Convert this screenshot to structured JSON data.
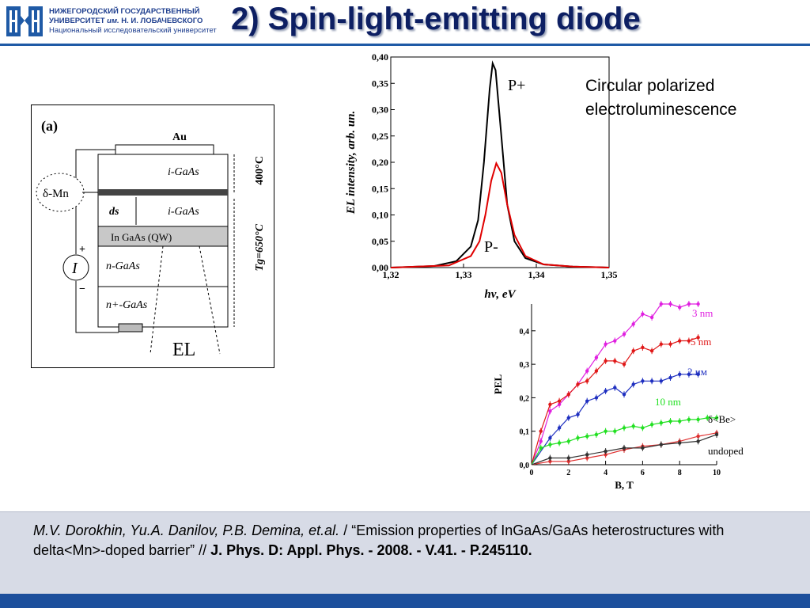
{
  "header": {
    "university_line1": "НИЖЕГОРОДСКИЙ ГОСУДАРСТВЕННЫЙ",
    "university_line2_a": "УНИВЕРСИТЕТ",
    "university_line2_b": "им.",
    "university_line2_c": "Н. И. ЛОБАЧЕВСКОГО",
    "university_line3": "Национальный исследовательский университет",
    "title": "2) Spin-light-emitting diode",
    "accent": "#1f5aa6",
    "title_color": "#0d1f63"
  },
  "figure_a": {
    "panel_label": "(a)",
    "layer_au": "Au",
    "layer_top": "i-GaAs",
    "layer_mid": "i-GaAs",
    "layer_qw": "In GaAs (QW)",
    "layer_n": "n-GaAs",
    "layer_nplus": "n+-GaAs",
    "dopant": "δ-Mn",
    "spacer": "ds",
    "temp_top": "400°C",
    "temp_bottom": "Tg=650°C",
    "current": "I",
    "plus": "+",
    "minus": "−",
    "emission": "EL"
  },
  "caption": {
    "line1": "Circular polarized",
    "line2": "electroluminescence"
  },
  "chart_data": [
    {
      "type": "line",
      "xlabel": "hν, eV",
      "ylabel": "EL intensity, arb. un.",
      "xlim": [
        1.32,
        1.35
      ],
      "ylim": [
        0,
        0.4
      ],
      "xticks": [
        "1,32",
        "1,33",
        "1,34",
        "1,35"
      ],
      "xtick_values": [
        1.32,
        1.33,
        1.34,
        1.35
      ],
      "yticks": [
        "0,00",
        "0,05",
        "0,10",
        "0,15",
        "0,20",
        "0,25",
        "0,30",
        "0,35",
        "0,40"
      ],
      "ytick_values": [
        0,
        0.05,
        0.1,
        0.15,
        0.2,
        0.25,
        0.3,
        0.35,
        0.4
      ],
      "series": [
        {
          "name": "P+",
          "color": "#000000",
          "x": [
            1.32,
            1.326,
            1.329,
            1.331,
            1.332,
            1.3328,
            1.3336,
            1.334,
            1.3344,
            1.3352,
            1.336,
            1.337,
            1.3385,
            1.341,
            1.345,
            1.35
          ],
          "y": [
            0.0,
            0.003,
            0.012,
            0.04,
            0.09,
            0.2,
            0.34,
            0.388,
            0.375,
            0.25,
            0.12,
            0.05,
            0.018,
            0.006,
            0.002,
            0.0
          ]
        },
        {
          "name": "P-",
          "color": "#e00000",
          "x": [
            1.32,
            1.328,
            1.331,
            1.3322,
            1.333,
            1.3338,
            1.3345,
            1.3352,
            1.336,
            1.337,
            1.3385,
            1.341,
            1.345,
            1.35
          ],
          "y": [
            0.0,
            0.004,
            0.022,
            0.05,
            0.1,
            0.165,
            0.198,
            0.18,
            0.12,
            0.062,
            0.022,
            0.006,
            0.002,
            0.0
          ]
        }
      ],
      "annotations": [
        "P+",
        "P-"
      ]
    },
    {
      "type": "line",
      "xlabel": "B, T",
      "ylabel": "PEL",
      "xlim": [
        0,
        10
      ],
      "ylim": [
        0,
        0.48
      ],
      "xticks": [
        "0",
        "2",
        "4",
        "6",
        "8",
        "10"
      ],
      "xtick_values": [
        0,
        2,
        4,
        6,
        8,
        10
      ],
      "yticks": [
        "0,0",
        "0,1",
        "0,2",
        "0,3",
        "0,4"
      ],
      "ytick_values": [
        0,
        0.1,
        0.2,
        0.3,
        0.4
      ],
      "series": [
        {
          "name": "3 nm",
          "color": "#e020e0",
          "x": [
            0,
            0.5,
            1,
            1.5,
            2,
            2.5,
            3,
            3.5,
            4,
            4.5,
            5,
            5.5,
            6,
            6.5,
            7,
            7.5,
            8,
            8.5,
            9
          ],
          "y": [
            0,
            0.07,
            0.16,
            0.18,
            0.21,
            0.24,
            0.28,
            0.32,
            0.36,
            0.37,
            0.39,
            0.42,
            0.45,
            0.44,
            0.48,
            0.48,
            0.47,
            0.48,
            0.48
          ]
        },
        {
          "name": "5 nm",
          "color": "#e01818",
          "x": [
            0,
            0.5,
            1,
            1.5,
            2,
            2.5,
            3,
            3.5,
            4,
            4.5,
            5,
            5.5,
            6,
            6.5,
            7,
            7.5,
            8,
            8.5,
            9
          ],
          "y": [
            0,
            0.1,
            0.18,
            0.19,
            0.21,
            0.24,
            0.25,
            0.28,
            0.31,
            0.31,
            0.3,
            0.34,
            0.35,
            0.34,
            0.36,
            0.36,
            0.37,
            0.37,
            0.38
          ]
        },
        {
          "name": "2 нм",
          "color": "#1e2fc0",
          "x": [
            0,
            1,
            1.5,
            2,
            2.5,
            3,
            3.5,
            4,
            4.5,
            5,
            5.5,
            6,
            6.5,
            7,
            7.5,
            8,
            8.5,
            9
          ],
          "y": [
            0,
            0.08,
            0.11,
            0.14,
            0.15,
            0.19,
            0.2,
            0.22,
            0.23,
            0.21,
            0.24,
            0.25,
            0.25,
            0.25,
            0.26,
            0.27,
            0.27,
            0.27
          ]
        },
        {
          "name": "10 nm",
          "color": "#22e022",
          "x": [
            0,
            0.5,
            1,
            1.5,
            2,
            2.5,
            3,
            3.5,
            4,
            4.5,
            5,
            5.5,
            6,
            6.5,
            7,
            7.5,
            8,
            8.5,
            9,
            9.5,
            10
          ],
          "y": [
            0,
            0.05,
            0.06,
            0.065,
            0.07,
            0.08,
            0.085,
            0.09,
            0.1,
            0.1,
            0.11,
            0.115,
            0.11,
            0.12,
            0.125,
            0.13,
            0.13,
            0.135,
            0.135,
            0.14,
            0.14
          ]
        },
        {
          "name": "δ<Be>",
          "color": "#e03030",
          "x": [
            0,
            1,
            2,
            3,
            4,
            5,
            6,
            7,
            8,
            9,
            10
          ],
          "y": [
            0,
            0.01,
            0.01,
            0.02,
            0.03,
            0.045,
            0.055,
            0.06,
            0.07,
            0.085,
            0.095
          ]
        },
        {
          "name": "undoped",
          "color": "#333333",
          "x": [
            0,
            1,
            2,
            3,
            4,
            5,
            6,
            7,
            8,
            9,
            10
          ],
          "y": [
            0,
            0.02,
            0.02,
            0.03,
            0.04,
            0.05,
            0.05,
            0.06,
            0.065,
            0.07,
            0.09
          ]
        }
      ],
      "annotations": [
        "3 nm",
        "5 nm",
        "2 нм",
        "10 nm",
        "δ<Be>",
        "undoped"
      ]
    }
  ],
  "reference": {
    "authors": "M.V. Dorokhin, Yu.A. Danilov, P.B. Demina, et.al.",
    "slash": " / ",
    "title": "“Emission properties of InGaAs/GaAs heterostructures with delta<Mn>-doped barrier” // ",
    "journal": "J. Phys. D: Appl. Phys. - 2008. - V.41. - P.245110."
  },
  "colors": {
    "header_line": "#1f5aa6",
    "reference_box": "#d7dbe6",
    "footer": "#1c4f9c"
  }
}
